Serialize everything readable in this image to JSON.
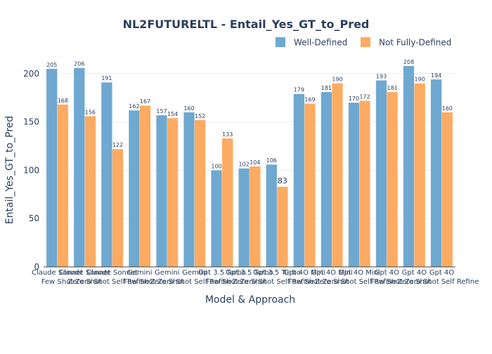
{
  "chart_data": {
    "type": "bar",
    "title": "NL2FUTURELTL - Entail_Yes_GT_to_Pred",
    "xlabel": "Model & Approach",
    "ylabel": "Entail_Yes_GT_to_Pred",
    "ylim": [
      0,
      218
    ],
    "yticks": [
      0,
      50,
      100,
      150,
      200
    ],
    "grid": true,
    "legend_position": "top-right",
    "categories": [
      [
        "Claude Sonnet",
        "Few Shot"
      ],
      [
        "Claude Sonnet",
        "Zero Shot"
      ],
      [
        "Claude Sonnet",
        "Zero Shot Self Refine"
      ],
      [
        "Gemini",
        "Few Shot"
      ],
      [
        "Gemini",
        "Zero Shot"
      ],
      [
        "Gemini",
        "Zero Shot Self Refine"
      ],
      [
        "Gpt 3.5 Turbo",
        "Few Shot"
      ],
      [
        "Gpt 3.5 Turbo",
        "Zero Shot"
      ],
      [
        "Gpt 3.5 Turbo",
        "Zero Shot Self Refine"
      ],
      [
        "Gpt 4O Mini",
        "Few Shot"
      ],
      [
        "Gpt 4O Mini",
        "Zero Shot"
      ],
      [
        "Gpt 4O Mini",
        "Zero Shot Self Refine"
      ],
      [
        "Gpt 4O",
        "Few Shot"
      ],
      [
        "Gpt 4O",
        "Zero Shot"
      ],
      [
        "Gpt 4O",
        "Zero Shot Self Refine"
      ]
    ],
    "series": [
      {
        "name": "Well-Defined",
        "color": "#6fa8d0",
        "values": [
          205,
          206,
          191,
          162,
          157,
          160,
          100,
          102,
          106,
          179,
          181,
          170,
          193,
          208,
          194
        ]
      },
      {
        "name": "Not Fully-Defined",
        "color": "#fdab62",
        "values": [
          168,
          156,
          122,
          167,
          154,
          152,
          133,
          104,
          83,
          169,
          190,
          172,
          181,
          190,
          160
        ]
      }
    ]
  }
}
